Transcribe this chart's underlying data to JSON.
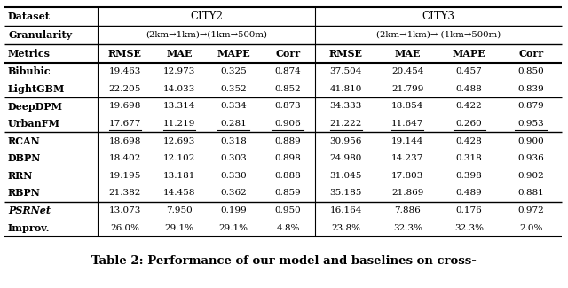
{
  "title": "Table 2: Performance of our model and baselines on cross-",
  "rows": [
    [
      "Bibubic",
      "19.463",
      "12.973",
      "0.325",
      "0.874",
      "37.504",
      "20.454",
      "0.457",
      "0.850"
    ],
    [
      "LightGBM",
      "22.205",
      "14.033",
      "0.352",
      "0.852",
      "41.810",
      "21.799",
      "0.488",
      "0.839"
    ],
    [
      "DeepDPM",
      "19.698",
      "13.314",
      "0.334",
      "0.873",
      "34.333",
      "18.854",
      "0.422",
      "0.879"
    ],
    [
      "UrbanFM",
      "17.677",
      "11.219",
      "0.281",
      "0.906",
      "21.222",
      "11.647",
      "0.260",
      "0.953"
    ],
    [
      "RCAN",
      "18.698",
      "12.693",
      "0.318",
      "0.889",
      "30.956",
      "19.144",
      "0.428",
      "0.900"
    ],
    [
      "DBPN",
      "18.402",
      "12.102",
      "0.303",
      "0.898",
      "24.980",
      "14.237",
      "0.318",
      "0.936"
    ],
    [
      "RRN",
      "19.195",
      "13.181",
      "0.330",
      "0.888",
      "31.045",
      "17.803",
      "0.398",
      "0.902"
    ],
    [
      "RBPN",
      "21.382",
      "14.458",
      "0.362",
      "0.859",
      "35.185",
      "21.869",
      "0.489",
      "0.881"
    ],
    [
      "PSRNet",
      "13.073",
      "7.950",
      "0.199",
      "0.950",
      "16.164",
      "7.886",
      "0.176",
      "0.972"
    ],
    [
      "Improv.",
      "26.0%",
      "29.1%",
      "29.1%",
      "4.8%",
      "23.8%",
      "32.3%",
      "32.3%",
      "2.0%"
    ]
  ],
  "fig_width": 6.4,
  "fig_height": 3.25,
  "dpi": 100
}
